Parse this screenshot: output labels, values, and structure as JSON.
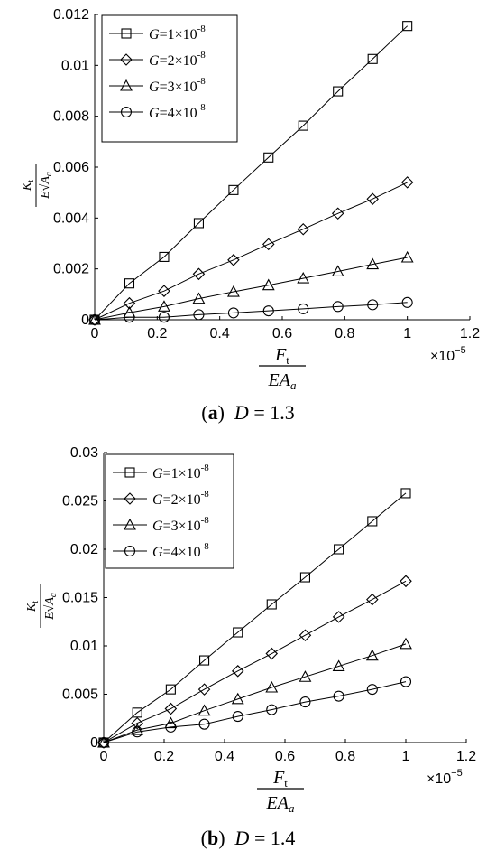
{
  "chart_data": [
    {
      "type": "line",
      "caption": {
        "letter": "a",
        "var": "D",
        "eq": " = 1.3"
      },
      "x": [
        0,
        0.111,
        0.222,
        0.333,
        0.444,
        0.556,
        0.667,
        0.778,
        0.889,
        1.0
      ],
      "xlim": [
        0,
        1.2
      ],
      "xticks": [
        "0",
        "0.2",
        "0.4",
        "0.6",
        "0.8",
        "1",
        "1.2"
      ],
      "x_exponent": "×10",
      "x_exponent_power": "−5",
      "xlabel": {
        "num": "F",
        "num_sub": "t",
        "den": "EA",
        "den_sub": "a"
      },
      "ylabel": {
        "num": "K",
        "num_sub": "t",
        "den_E": "E",
        "den_A": "A",
        "den_sub": "a"
      },
      "ylim": [
        0,
        0.012
      ],
      "yticks": [
        "0",
        "0.002",
        "0.004",
        "0.006",
        "0.008",
        "0.01",
        "0.012"
      ],
      "legend_placement": "top-left",
      "series": [
        {
          "name": "G=1×10⁻⁸",
          "g": "G",
          "eq": "=1×10",
          "pow": "-8",
          "marker": "square",
          "values": [
            0,
            0.00143,
            0.00247,
            0.0038,
            0.0051,
            0.00638,
            0.00763,
            0.00898,
            0.01025,
            0.01155
          ]
        },
        {
          "name": "G=2×10⁻⁸",
          "g": "G",
          "eq": "=2×10",
          "pow": "-8",
          "marker": "diamond",
          "values": [
            0,
            0.00065,
            0.00113,
            0.0018,
            0.00235,
            0.00297,
            0.00356,
            0.00418,
            0.00475,
            0.0054
          ]
        },
        {
          "name": "G=3×10⁻⁸",
          "g": "G",
          "eq": "=3×10",
          "pow": "-8",
          "marker": "triangle",
          "values": [
            0,
            0.00028,
            0.00052,
            0.00083,
            0.0011,
            0.00136,
            0.00163,
            0.0019,
            0.00218,
            0.00245
          ]
        },
        {
          "name": "G=4×10⁻⁸",
          "g": "G",
          "eq": "=4×10",
          "pow": "-8",
          "marker": "circle",
          "values": [
            0,
            0.0001,
            0.0001,
            0.0002,
            0.00027,
            0.00035,
            0.00043,
            0.00052,
            0.00059,
            0.00068
          ]
        }
      ]
    },
    {
      "type": "line",
      "caption": {
        "letter": "b",
        "var": "D",
        "eq": " = 1.4"
      },
      "x": [
        0,
        0.111,
        0.222,
        0.333,
        0.444,
        0.556,
        0.667,
        0.778,
        0.889,
        1.0
      ],
      "xlim": [
        0,
        1.2
      ],
      "xticks": [
        "0",
        "0.2",
        "0.4",
        "0.6",
        "0.8",
        "1",
        "1.2"
      ],
      "x_exponent": "×10",
      "x_exponent_power": "−5",
      "xlabel": {
        "num": "F",
        "num_sub": "t",
        "den": "EA",
        "den_sub": "a"
      },
      "ylabel": {
        "num": "K",
        "num_sub": "t",
        "den_E": "E",
        "den_A": "A",
        "den_sub": "a"
      },
      "ylim": [
        0,
        0.03
      ],
      "yticks": [
        "0",
        "0.005",
        "0.01",
        "0.015",
        "0.02",
        "0.025",
        "0.03"
      ],
      "legend_placement": "top-left",
      "series": [
        {
          "name": "G=1×10⁻⁸",
          "g": "G",
          "eq": "=1×10",
          "pow": "-8",
          "marker": "square",
          "values": [
            0,
            0.0031,
            0.0055,
            0.0085,
            0.0114,
            0.0143,
            0.0171,
            0.02,
            0.0229,
            0.0258
          ]
        },
        {
          "name": "G=2×10⁻⁸",
          "g": "G",
          "eq": "=2×10",
          "pow": "-8",
          "marker": "diamond",
          "values": [
            0,
            0.002,
            0.0035,
            0.0055,
            0.0074,
            0.0092,
            0.0111,
            0.013,
            0.0148,
            0.0167
          ]
        },
        {
          "name": "G=3×10⁻⁸",
          "g": "G",
          "eq": "=3×10",
          "pow": "-8",
          "marker": "triangle",
          "values": [
            0,
            0.0013,
            0.002,
            0.0033,
            0.0045,
            0.0057,
            0.0068,
            0.0079,
            0.009,
            0.0102
          ]
        },
        {
          "name": "G=4×10⁻⁸",
          "g": "G",
          "eq": "=4×10",
          "pow": "-8",
          "marker": "circle",
          "values": [
            0,
            0.0011,
            0.0016,
            0.0019,
            0.0027,
            0.0034,
            0.0042,
            0.0048,
            0.0055,
            0.0063
          ]
        }
      ]
    }
  ]
}
